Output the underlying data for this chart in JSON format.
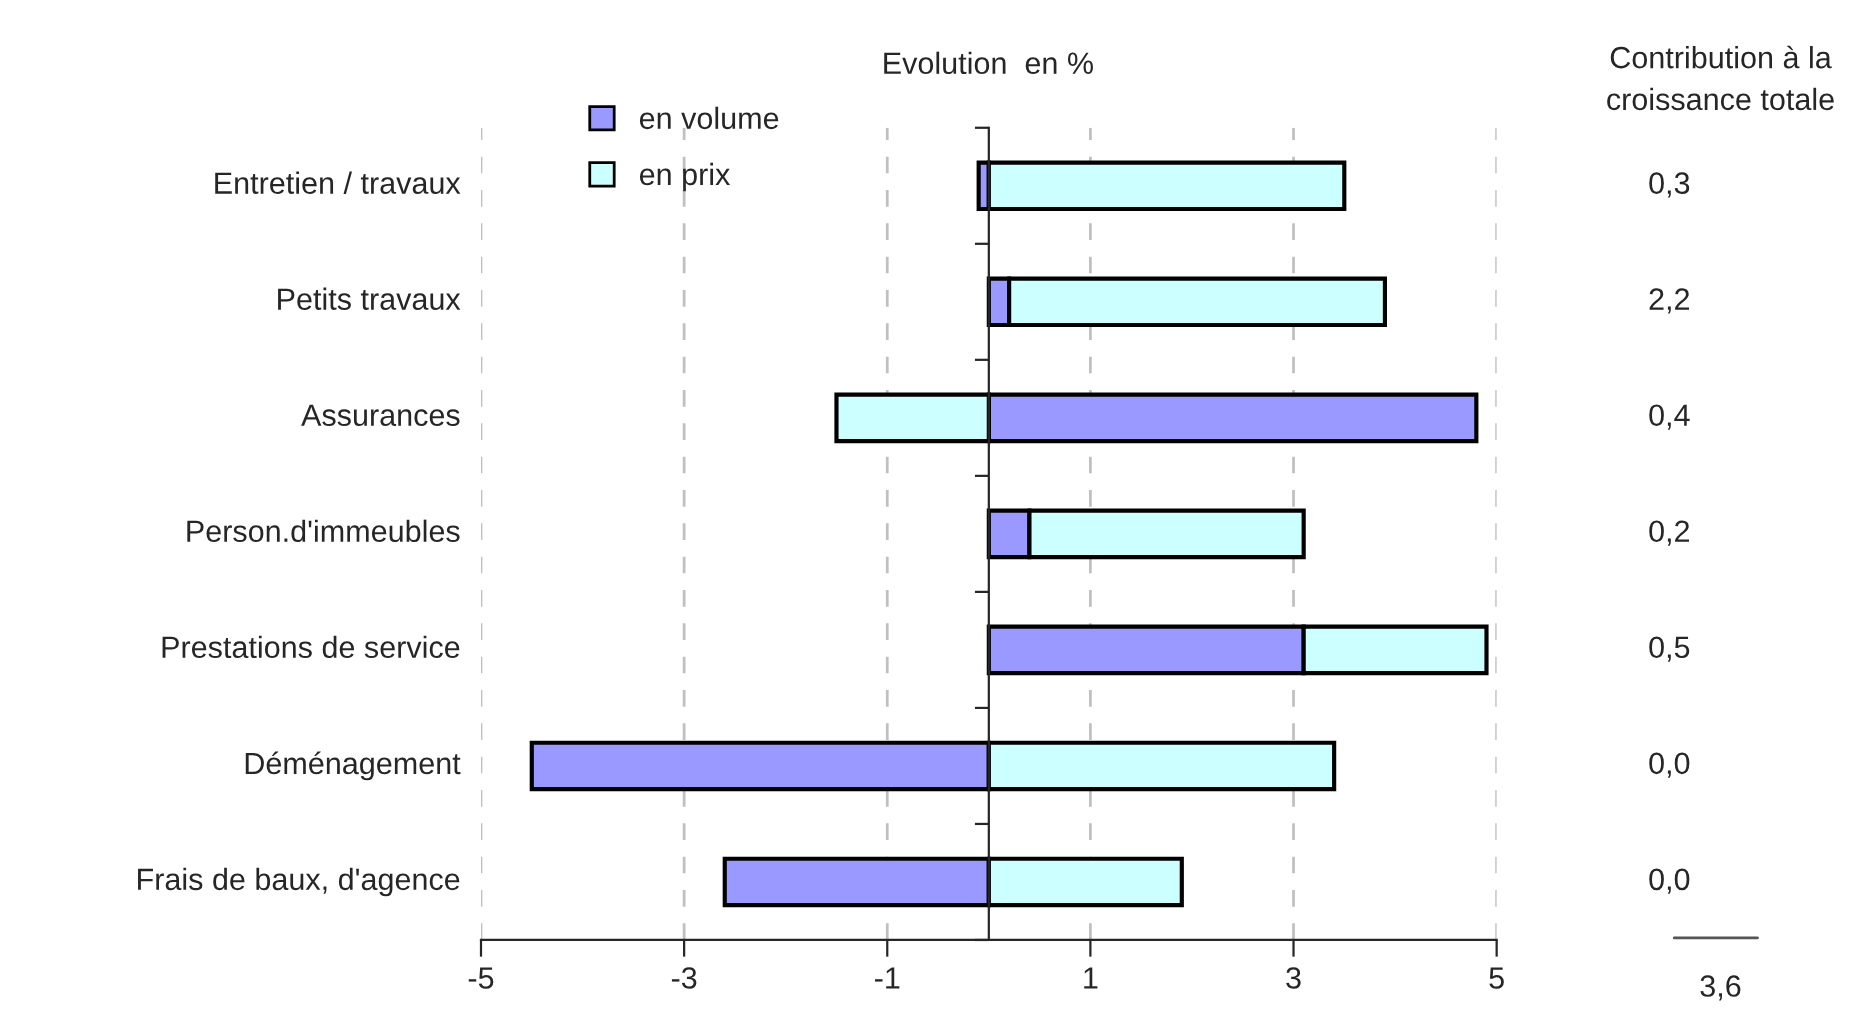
{
  "chart_data": {
    "type": "bar",
    "orientation": "horizontal",
    "stacked": true,
    "title": "Evolution  en %",
    "categories": [
      "Entretien / travaux",
      "Petits travaux",
      "Assurances",
      "Person.d'immeubles",
      "Prestations de service",
      "Déménagement",
      "Frais de baux, d'agence"
    ],
    "series": [
      {
        "name": "en volume",
        "color": "#9999ff",
        "values": [
          -0.1,
          0.2,
          4.8,
          0.4,
          3.1,
          -4.5,
          -2.6
        ]
      },
      {
        "name": "en prix",
        "color": "#ccffff",
        "values": [
          3.5,
          3.7,
          -1.5,
          2.7,
          1.8,
          3.4,
          1.9
        ]
      }
    ],
    "xlim": [
      -5,
      5
    ],
    "xticks": [
      -5,
      -3,
      -1,
      1,
      3,
      5
    ],
    "grid": "x",
    "legend": "top left",
    "annotations": [
      "Contribution à la\ncroissance totale",
      "0,3",
      "2,2",
      "0,4",
      "0,2",
      "0,5",
      "0,0",
      "0,0",
      "3,6"
    ]
  }
}
